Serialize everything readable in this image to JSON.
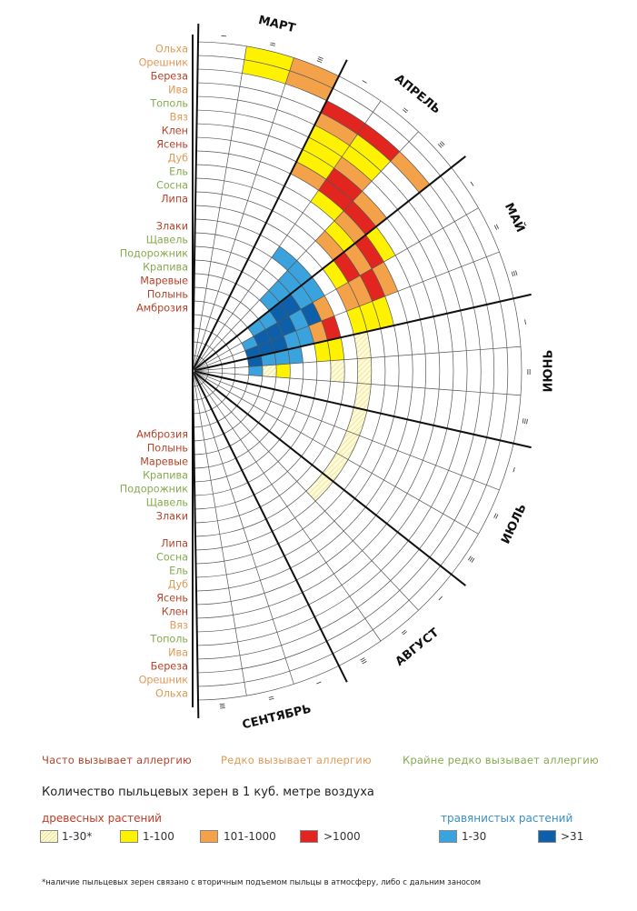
{
  "chart_data": {
    "type": "radial-heatmap",
    "title": "",
    "months": [
      {
        "name": "МАРТ"
      },
      {
        "name": "АПРЕЛЬ"
      },
      {
        "name": "МАЙ"
      },
      {
        "name": "ИЮНЬ"
      },
      {
        "name": "ИЮЛЬ"
      },
      {
        "name": "АВГУСТ"
      },
      {
        "name": "СЕНТЯБРЬ"
      }
    ],
    "decade_marks": [
      "I",
      "II",
      "III"
    ],
    "plants_upper": [
      {
        "name": "Ольха",
        "category": "rarely"
      },
      {
        "name": "Орешник",
        "category": "rarely"
      },
      {
        "name": "Береза",
        "category": "often"
      },
      {
        "name": "Ива",
        "category": "rarely"
      },
      {
        "name": "Тополь",
        "category": "very_rarely"
      },
      {
        "name": "Вяз",
        "category": "rarely"
      },
      {
        "name": "Клен",
        "category": "often"
      },
      {
        "name": "Ясень",
        "category": "often"
      },
      {
        "name": "Дуб",
        "category": "rarely"
      },
      {
        "name": "Ель",
        "category": "very_rarely"
      },
      {
        "name": "Сосна",
        "category": "very_rarely"
      },
      {
        "name": "Липа",
        "category": "often"
      },
      {
        "name": "Злаки",
        "category": "often"
      },
      {
        "name": "Щавель",
        "category": "very_rarely"
      },
      {
        "name": "Подорожник",
        "category": "very_rarely"
      },
      {
        "name": "Крапива",
        "category": "very_rarely"
      },
      {
        "name": "Маревые",
        "category": "often"
      },
      {
        "name": "Полынь",
        "category": "often"
      },
      {
        "name": "Амброзия",
        "category": "often"
      }
    ],
    "plants_lower": [
      {
        "name": "Амброзия",
        "category": "often"
      },
      {
        "name": "Полынь",
        "category": "often"
      },
      {
        "name": "Маревые",
        "category": "often"
      },
      {
        "name": "Крапива",
        "category": "very_rarely"
      },
      {
        "name": "Подорожник",
        "category": "very_rarely"
      },
      {
        "name": "Щавель",
        "category": "very_rarely"
      },
      {
        "name": "Злаки",
        "category": "often"
      },
      {
        "name": "Липа",
        "category": "often"
      },
      {
        "name": "Сосна",
        "category": "very_rarely"
      },
      {
        "name": "Ель",
        "category": "very_rarely"
      },
      {
        "name": "Дуб",
        "category": "rarely"
      },
      {
        "name": "Ясень",
        "category": "often"
      },
      {
        "name": "Клен",
        "category": "often"
      },
      {
        "name": "Вяз",
        "category": "rarely"
      },
      {
        "name": "Тополь",
        "category": "very_rarely"
      },
      {
        "name": "Ива",
        "category": "rarely"
      },
      {
        "name": "Береза",
        "category": "often"
      },
      {
        "name": "Орешник",
        "category": "rarely"
      },
      {
        "name": "Ольха",
        "category": "rarely"
      }
    ],
    "tree_cells": [
      {
        "plant": "Ольха",
        "decade": 2,
        "level": "1-100"
      },
      {
        "plant": "Орешник",
        "decade": 2,
        "level": "1-100"
      },
      {
        "plant": "Ольха",
        "decade": 3,
        "level": "101-1000"
      },
      {
        "plant": "Орешник",
        "decade": 3,
        "level": "101-1000"
      },
      {
        "plant": "Береза",
        "decade": 4,
        "level": ">1000"
      },
      {
        "plant": "Береза",
        "decade": 5,
        "level": ">1000"
      },
      {
        "plant": "Береза",
        "decade": 6,
        "level": "101-1000"
      },
      {
        "plant": "Ива",
        "decade": 4,
        "level": "101-1000"
      },
      {
        "plant": "Ива",
        "decade": 5,
        "level": "1-100"
      },
      {
        "plant": "Тополь",
        "decade": 4,
        "level": "1-100"
      },
      {
        "plant": "Тополь",
        "decade": 5,
        "level": "1-100"
      },
      {
        "plant": "Вяз",
        "decade": 4,
        "level": "1-100"
      },
      {
        "plant": "Вяз",
        "decade": 5,
        "level": "101-1000"
      },
      {
        "plant": "Клен",
        "decade": 4,
        "level": "1-100"
      },
      {
        "plant": "Клен",
        "decade": 5,
        "level": ">1000"
      },
      {
        "plant": "Клен",
        "decade": 6,
        "level": "101-1000"
      },
      {
        "plant": "Ясень",
        "decade": 4,
        "level": "101-1000"
      },
      {
        "plant": "Ясень",
        "decade": 5,
        "level": ">1000"
      },
      {
        "plant": "Ясень",
        "decade": 6,
        "level": ">1000"
      },
      {
        "plant": "Ясень",
        "decade": 7,
        "level": "1-100"
      },
      {
        "plant": "Дуб",
        "decade": 5,
        "level": "1-100"
      },
      {
        "plant": "Дуб",
        "decade": 6,
        "level": "101-1000"
      },
      {
        "plant": "Дуб",
        "decade": 7,
        "level": ">1000"
      },
      {
        "plant": "Дуб",
        "decade": 8,
        "level": "101-1000"
      },
      {
        "plant": "Ель",
        "decade": 6,
        "level": "1-100"
      },
      {
        "plant": "Ель",
        "decade": 7,
        "level": "101-1000"
      },
      {
        "plant": "Ель",
        "decade": 8,
        "level": ">1000"
      },
      {
        "plant": "Ель",
        "decade": 9,
        "level": "1-100"
      },
      {
        "plant": "Сосна",
        "decade": 6,
        "level": "101-1000"
      },
      {
        "plant": "Сосна",
        "decade": 7,
        "level": ">1000"
      },
      {
        "plant": "Сосна",
        "decade": 8,
        "level": "101-1000"
      },
      {
        "plant": "Сосна",
        "decade": 9,
        "level": "1-100"
      },
      {
        "plant": "Липа",
        "decade": 7,
        "level": "1-100"
      },
      {
        "plant": "Липа",
        "decade": 8,
        "level": "101-1000"
      },
      {
        "plant": "Липа",
        "decade": 9,
        "level": "1-100"
      },
      {
        "plant": "Липа",
        "decade": 10,
        "level": "1-30*"
      },
      {
        "plant": "Липа",
        "decade": 11,
        "level": "1-30*"
      },
      {
        "plant": "Липа",
        "decade": 12,
        "level": "1-30*"
      },
      {
        "plant": "Липа",
        "decade": 13,
        "level": "1-30*"
      },
      {
        "plant": "Липа",
        "decade": 14,
        "level": "1-30*"
      },
      {
        "plant": "Липа",
        "decade": 15,
        "level": "1-30*"
      },
      {
        "plant": "Липа",
        "decade": 16,
        "level": "1-30*"
      },
      {
        "plant": "Злаки",
        "decade": 7,
        "level": "1-100"
      },
      {
        "plant": "Злаки",
        "decade": 8,
        "level": "101-1000"
      },
      {
        "plant": "Злаки",
        "decade": 9,
        "level": ">1000"
      },
      {
        "plant": "Злаки",
        "decade": 10,
        "level": "1-100"
      },
      {
        "plant": "Злаки",
        "decade": 11,
        "level": "1-30*"
      },
      {
        "plant": "Щавель",
        "decade": 7,
        "level": "1-100"
      },
      {
        "plant": "Щавель",
        "decade": 8,
        "level": ">1000"
      },
      {
        "plant": "Щавель",
        "decade": 9,
        "level": "101-1000"
      },
      {
        "plant": "Щавель",
        "decade": 10,
        "level": "1-100"
      },
      {
        "plant": "Подорожник",
        "decade": 8,
        "level": "101-1000"
      },
      {
        "plant": "Подорожник",
        "decade": 9,
        "level": "1-100"
      },
      {
        "plant": "Крапива",
        "decade": 8,
        "level": "1-100"
      },
      {
        "plant": "Крапива",
        "decade": 9,
        "level": "101-1000"
      },
      {
        "plant": "Маревые",
        "decade": 9,
        "level": ">1000"
      },
      {
        "plant": "Маревые",
        "decade": 10,
        "level": "101-1000"
      },
      {
        "plant": "Маревые",
        "decade": 11,
        "level": "1-100"
      },
      {
        "plant": "Полынь",
        "decade": 9,
        "level": "101-1000"
      },
      {
        "plant": "Полынь",
        "decade": 10,
        "level": "1-100"
      },
      {
        "plant": "Полынь",
        "decade": 11,
        "level": "1-30*"
      },
      {
        "plant": "Амброзия",
        "decade": 10,
        "level": "1-100"
      },
      {
        "plant": "Амброзия",
        "decade": 11,
        "level": "1-30*"
      }
    ],
    "grass_cells": [
      {
        "plant": "Злаки",
        "decade": 5,
        "level": "1-30"
      },
      {
        "plant": "Злаки",
        "decade": 6,
        "level": "1-30"
      },
      {
        "plant": "Злаки",
        "decade": 7,
        "level": "1-30"
      },
      {
        "plant": "Щавель",
        "decade": 6,
        "level": "1-30"
      },
      {
        "plant": "Щавель",
        "decade": 7,
        "level": "1-30"
      },
      {
        "plant": "Щавель",
        "decade": 8,
        "level": ">31"
      },
      {
        "plant": "Подорожник",
        "decade": 6,
        "level": "1-30"
      },
      {
        "plant": "Подорожник",
        "decade": 7,
        "level": ">31"
      },
      {
        "plant": "Подорожник",
        "decade": 8,
        "level": "1-30"
      },
      {
        "plant": "Подорожник",
        "decade": 9,
        "level": "1-30"
      },
      {
        "plant": "Крапива",
        "decade": 6,
        "level": "1-30"
      },
      {
        "plant": "Крапива",
        "decade": 7,
        "level": ">31"
      },
      {
        "plant": "Крапива",
        "decade": 8,
        "level": ">31"
      },
      {
        "plant": "Крапива",
        "decade": 9,
        "level": "1-30"
      },
      {
        "plant": "Крапива",
        "decade": 10,
        "level": "1-30"
      },
      {
        "plant": "Маревые",
        "decade": 7,
        "level": "1-30"
      },
      {
        "plant": "Маревые",
        "decade": 8,
        "level": ">31"
      },
      {
        "plant": "Маревые",
        "decade": 9,
        "level": ">31"
      },
      {
        "plant": "Маревые",
        "decade": 10,
        "level": "1-30"
      },
      {
        "plant": "Полынь",
        "decade": 7,
        "level": "1-30"
      },
      {
        "plant": "Полынь",
        "decade": 8,
        "level": ">31"
      },
      {
        "plant": "Полынь",
        "decade": 9,
        "level": ">31"
      },
      {
        "plant": "Полынь",
        "decade": 10,
        "level": "1-30"
      },
      {
        "plant": "Амброзия",
        "decade": 8,
        "level": "1-30"
      },
      {
        "plant": "Амброзия",
        "decade": 9,
        "level": ">31"
      },
      {
        "plant": "Амброзия",
        "decade": 10,
        "level": ">31"
      },
      {
        "plant": "Амброзия",
        "decade": 11,
        "level": "1-30"
      }
    ],
    "colors": {
      "often": "#b5432a",
      "rarely": "#e09a57",
      "very_rarely": "#86ab50",
      "1-30*": "#fdf8c8",
      "1-100": "#fff200",
      "101-1000": "#f4a24a",
      ">1000": "#e3251f",
      "1-30": "#3aa3dd",
      ">31": "#0c5fa8"
    }
  },
  "legend": {
    "often": "Часто вызывает аллергию",
    "rarely": "Редко вызывает аллергию",
    "very_rarely": "Крайне редко вызывает аллергию",
    "count_title": "Количество пыльцевых зерен в 1 куб. метре воздуха",
    "tree_title": "древесных растений",
    "grass_title": "травянистых растений",
    "tree_levels": [
      "1-30*",
      "1-100",
      "101-1000",
      ">1000"
    ],
    "grass_levels": [
      "1-30",
      ">31"
    ]
  },
  "footnote": "*наличие пыльцевых зерен связано с вторичным подъемом пыльцы в атмосферу, либо с дальним заносом"
}
